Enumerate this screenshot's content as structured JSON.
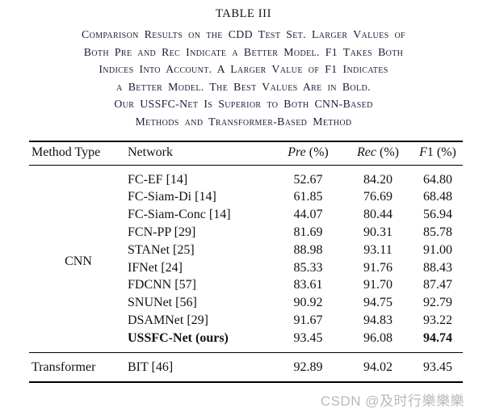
{
  "caption": {
    "label": "TABLE III",
    "lines": [
      "Comparison Results on the CDD Test Set. Larger Values of",
      "Both Pre and Rec Indicate a Better Model. F1 Takes Both",
      "Indices Into Account. A Larger Value of F1 Indicates",
      "a Better Model. The Best Values Are in Bold.",
      "Our USSFC-Net Is Superior to Both CNN-Based",
      "Methods and Transformer-Based Method"
    ]
  },
  "table": {
    "headers": {
      "method_type": "Method Type",
      "network": "Network",
      "metrics": [
        {
          "em": "Pre",
          "rest": " (%)"
        },
        {
          "em": "Rec",
          "rest": " (%)"
        },
        {
          "em": "F",
          "rest": "1 (%)"
        }
      ]
    },
    "groups": [
      {
        "type": "CNN",
        "rows": [
          {
            "network": "FC-EF [14]",
            "pre": "52.67",
            "rec": "84.20",
            "f1": "64.80"
          },
          {
            "network": "FC-Siam-Di [14]",
            "pre": "61.85",
            "rec": "76.69",
            "f1": "68.48"
          },
          {
            "network": "FC-Siam-Conc [14]",
            "pre": "44.07",
            "rec": "80.44",
            "f1": "56.94"
          },
          {
            "network": "FCN-PP [29]",
            "pre": "81.69",
            "rec": "90.31",
            "f1": "85.78"
          },
          {
            "network": "STANet [25]",
            "pre": "88.98",
            "rec": "93.11",
            "f1": "91.00"
          },
          {
            "network": "IFNet [24]",
            "pre": "85.33",
            "rec": "91.76",
            "f1": "88.43"
          },
          {
            "network": "FDCNN [57]",
            "pre": "83.61",
            "rec": "91.70",
            "f1": "87.47"
          },
          {
            "network": "SNUNet [56]",
            "pre": "90.92",
            "rec": "94.75",
            "f1": "92.79"
          },
          {
            "network": "DSAMNet [29]",
            "pre": "91.67",
            "rec": "94.83",
            "f1": "93.22"
          },
          {
            "network": "USSFC-Net (ours)",
            "pre": "93.45",
            "rec": "96.08",
            "f1": "94.74"
          }
        ]
      },
      {
        "type": "Transformer",
        "rows": [
          {
            "network": "BIT [46]",
            "pre": "92.89",
            "rec": "94.02",
            "f1": "93.45"
          }
        ]
      }
    ]
  },
  "watermark": "CSDN @及时行樂樂樂",
  "colors": {
    "text": "#111111",
    "caption_text": "#1c1c38",
    "rule": "#000000",
    "watermark": "#b9b9b9"
  }
}
